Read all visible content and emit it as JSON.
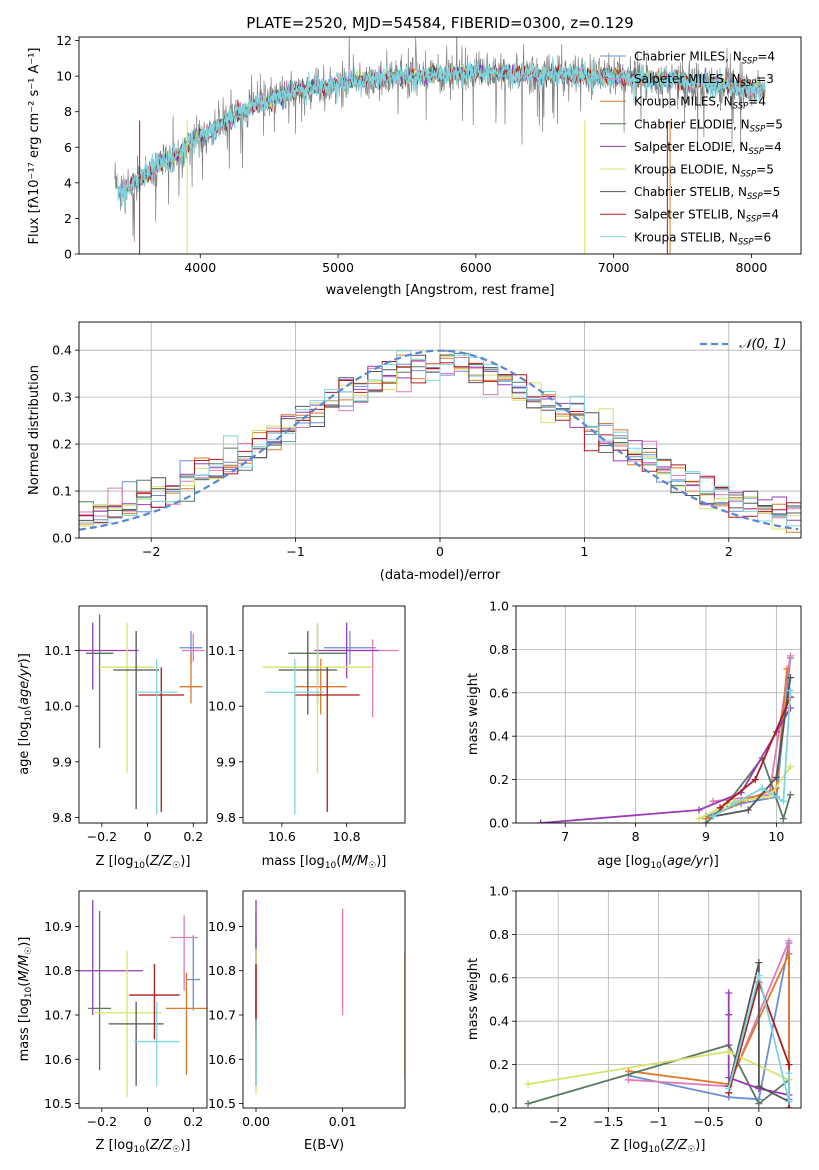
{
  "chart_data": [
    {
      "id": "spectrum",
      "type": "line",
      "title": "PLATE=2520, MJD=54584, FIBERID=0300, z=0.129",
      "xlabel": "wavelength [Angstrom, rest frame]",
      "ylabel": "Flux [fλ10⁻¹⁷ erg cm⁻² s⁻¹ A⁻¹]",
      "xlim": [
        3120,
        8360
      ],
      "ylim": [
        0,
        12.2
      ],
      "xticks": [
        4000,
        5000,
        6000,
        7000,
        8000
      ],
      "yticks": [
        0,
        2,
        4,
        6,
        8,
        10,
        12
      ],
      "grid": false,
      "legend_position": "right",
      "legend": [
        {
          "label": "Chabrier MILES, N",
          "sub": "SSP",
          "tail": "=4",
          "color": "#6d8fd8"
        },
        {
          "label": "Salpeter MILES, N",
          "sub": "SSP",
          "tail": "=3",
          "color": "#e17ab8"
        },
        {
          "label": "Kroupa MILES, N",
          "sub": "SSP",
          "tail": "=4",
          "color": "#e07a2a"
        },
        {
          "label": "Chabrier ELODIE, N",
          "sub": "SSP",
          "tail": "=5",
          "color": "#5a7a5f"
        },
        {
          "label": "Salpeter ELODIE, N",
          "sub": "SSP",
          "tail": "=4",
          "color": "#9a3cb5"
        },
        {
          "label": "Kroupa ELODIE, N",
          "sub": "SSP",
          "tail": "=5",
          "color": "#d6e36a"
        },
        {
          "label": "Chabrier STELIB, N",
          "sub": "SSP",
          "tail": "=5",
          "color": "#555555"
        },
        {
          "label": "Salpeter STELIB, N",
          "sub": "SSP",
          "tail": "=4",
          "color": "#b01a1a"
        },
        {
          "label": "Kroupa STELIB, N",
          "sub": "SSP",
          "tail": "=6",
          "color": "#7fd6e0"
        }
      ],
      "data_color": "#808080",
      "model_color": "#7fd6e0",
      "continuum_x": [
        3400,
        3500,
        3600,
        3700,
        3800,
        3900,
        4000,
        4100,
        4200,
        4300,
        4400,
        4500,
        4600,
        4700,
        4800,
        4900,
        5000,
        5200,
        5400,
        5600,
        5800,
        6000,
        6200,
        6400,
        6600,
        6800,
        7000,
        7200,
        7400,
        7600,
        7800,
        8000,
        8100
      ],
      "continuum_y": [
        3.6,
        3.8,
        4.4,
        5.0,
        5.4,
        6.0,
        6.6,
        7.0,
        7.6,
        8.0,
        8.4,
        8.6,
        8.9,
        9.2,
        9.3,
        9.4,
        9.6,
        9.8,
        9.9,
        10.0,
        10.1,
        10.2,
        10.2,
        10.1,
        10.1,
        10.0,
        10.0,
        9.9,
        9.8,
        9.6,
        9.5,
        9.3,
        9.2
      ]
    },
    {
      "id": "residuals",
      "type": "histogram",
      "xlabel": "(data-model)/error",
      "ylabel": "Normed distribution",
      "xlim": [
        -2.5,
        2.5
      ],
      "ylim": [
        0,
        0.46
      ],
      "xticks": [
        -2,
        -1,
        0,
        1,
        2
      ],
      "yticks": [
        0.0,
        0.1,
        0.2,
        0.3,
        0.4
      ],
      "grid": true,
      "legend": "𝒩(0, 1)",
      "legend_position": "top-right",
      "gaussian_color": "#5b86d4",
      "bin_width": 0.1
    },
    {
      "id": "age-vs-Z",
      "type": "errorbar",
      "xlabel": "Z [log₁₀(Z/Z☉)]",
      "ylabel": "age  [log₁₀(age/yr)]",
      "xlim": [
        -0.3,
        0.26
      ],
      "ylim": [
        9.79,
        10.18
      ],
      "xticks": [
        -0.2,
        0.0,
        0.2
      ],
      "yticks": [
        9.8,
        9.9,
        10.0,
        10.1
      ],
      "points": [
        {
          "x": 0.19,
          "y": 10.105,
          "xerr": 0.05,
          "yerr": [
            0.03,
            0.03
          ],
          "color": "#6d8fd8"
        },
        {
          "x": 0.2,
          "y": 10.1,
          "xerr": 0.05,
          "yerr": [
            0.02,
            0.03
          ],
          "color": "#e17ab8"
        },
        {
          "x": 0.19,
          "y": 10.035,
          "xerr": 0.05,
          "yerr": [
            0.03,
            0.06
          ],
          "color": "#e07a2a"
        },
        {
          "x": -0.21,
          "y": 10.095,
          "xerr": 0.06,
          "yerr": [
            0.17,
            0.07
          ],
          "color": "#5a7a5f"
        },
        {
          "x": -0.24,
          "y": 10.1,
          "xerr": 0.2,
          "yerr": [
            0.07,
            0.05
          ],
          "color": "#9a3cb5"
        },
        {
          "x": -0.09,
          "y": 10.07,
          "xerr": 0.12,
          "yerr": [
            0.19,
            0.08
          ],
          "color": "#d6e36a"
        },
        {
          "x": -0.05,
          "y": 10.065,
          "xerr": 0.1,
          "yerr": [
            0.25,
            0.07
          ],
          "color": "#555555"
        },
        {
          "x": 0.06,
          "y": 10.02,
          "xerr": 0.1,
          "yerr": [
            0.21,
            0.05
          ],
          "color": "#b01a1a"
        },
        {
          "x": 0.04,
          "y": 10.025,
          "xerr": 0.09,
          "yerr": [
            0.22,
            0.06
          ],
          "color": "#7fd6e0"
        }
      ]
    },
    {
      "id": "age-vs-mass",
      "type": "errorbar",
      "xlabel": "mass [log₁₀(M/M☉)]",
      "ylabel": "",
      "xlim": [
        10.48,
        10.98
      ],
      "ylim": [
        9.79,
        10.18
      ],
      "xticks": [
        10.6,
        10.8
      ],
      "yticks": [
        9.8,
        9.9,
        10.0,
        10.1
      ],
      "points": [
        {
          "x": 10.81,
          "y": 10.105,
          "xerr": 0.08,
          "yerr": [
            0.03,
            0.03
          ],
          "color": "#6d8fd8"
        },
        {
          "x": 10.88,
          "y": 10.1,
          "xerr": 0.08,
          "yerr": [
            0.12,
            0.02
          ],
          "color": "#e17ab8"
        },
        {
          "x": 10.72,
          "y": 10.035,
          "xerr": 0.08,
          "yerr": [
            0.05,
            0.05
          ],
          "color": "#e07a2a"
        },
        {
          "x": 10.71,
          "y": 10.095,
          "xerr": 0.09,
          "yerr": [
            0.09,
            0.05
          ],
          "color": "#5a7a5f"
        },
        {
          "x": 10.8,
          "y": 10.1,
          "xerr": 0.1,
          "yerr": [
            0.05,
            0.05
          ],
          "color": "#9a3cb5"
        },
        {
          "x": 10.71,
          "y": 10.07,
          "xerr": 0.17,
          "yerr": [
            0.19,
            0.08
          ],
          "color": "#d6e36a"
        },
        {
          "x": 10.68,
          "y": 10.065,
          "xerr": 0.09,
          "yerr": [
            0.08,
            0.07
          ],
          "color": "#555555"
        },
        {
          "x": 10.74,
          "y": 10.02,
          "xerr": 0.1,
          "yerr": [
            0.21,
            0.05
          ],
          "color": "#b01a1a"
        },
        {
          "x": 10.64,
          "y": 10.025,
          "xerr": 0.09,
          "yerr": [
            0.22,
            0.06
          ],
          "color": "#7fd6e0"
        }
      ]
    },
    {
      "id": "weight-vs-age",
      "type": "line",
      "xlabel": "age  [log₁₀(age/yr)]",
      "ylabel": "mass weight",
      "xlim": [
        6.3,
        10.35
      ],
      "ylim": [
        0,
        1.0
      ],
      "xticks": [
        7,
        8,
        9,
        10
      ],
      "yticks": [
        0.0,
        0.2,
        0.4,
        0.6,
        0.8,
        1.0
      ],
      "grid": true,
      "series": [
        {
          "color": "#6d8fd8",
          "x": [
            9.0,
            9.5,
            10.0,
            10.2
          ],
          "y": [
            0.03,
            0.09,
            0.12,
            0.76
          ]
        },
        {
          "color": "#e17ab8",
          "x": [
            9.1,
            9.9,
            10.2
          ],
          "y": [
            0.1,
            0.13,
            0.77
          ]
        },
        {
          "color": "#e07a2a",
          "x": [
            9.0,
            9.6,
            10.0,
            10.15
          ],
          "y": [
            0.02,
            0.11,
            0.16,
            0.71
          ]
        },
        {
          "color": "#5a7a5f",
          "x": [
            9.0,
            9.3,
            9.8,
            10.1,
            10.2
          ],
          "y": [
            0.0,
            0.09,
            0.3,
            0.02,
            0.13
          ]
        },
        {
          "color": "#9a3cb5",
          "x": [
            6.65,
            8.9,
            9.5,
            10.0,
            10.2
          ],
          "y": [
            0.0,
            0.06,
            0.14,
            0.42,
            0.53
          ]
        },
        {
          "color": "#d6e36a",
          "x": [
            8.9,
            9.4,
            9.9,
            10.2
          ],
          "y": [
            0.02,
            0.1,
            0.12,
            0.26
          ]
        },
        {
          "color": "#555555",
          "x": [
            9.1,
            9.6,
            10.0,
            10.2
          ],
          "y": [
            0.03,
            0.06,
            0.21,
            0.67
          ]
        },
        {
          "color": "#b01a1a",
          "x": [
            9.2,
            9.7,
            10.2
          ],
          "y": [
            0.07,
            0.2,
            0.58
          ]
        },
        {
          "color": "#7fd6e0",
          "x": [
            9.1,
            9.4,
            9.8,
            10.1,
            10.2
          ],
          "y": [
            0.03,
            0.09,
            0.16,
            0.1,
            0.61
          ]
        }
      ]
    },
    {
      "id": "mass-vs-Z",
      "type": "errorbar",
      "xlabel": "Z [log₁₀(Z/Z☉)]",
      "ylabel": "mass [log₁₀(M/M☉)]",
      "xlim": [
        -0.3,
        0.26
      ],
      "ylim": [
        10.49,
        10.98
      ],
      "xticks": [
        -0.2,
        0.0,
        0.2
      ],
      "yticks": [
        10.5,
        10.6,
        10.7,
        10.8,
        10.9
      ],
      "points": [
        {
          "x": 0.2,
          "y": 10.78,
          "xerr": 0.03,
          "yerr": [
            0.07,
            0.1
          ],
          "color": "#6d8fd8"
        },
        {
          "x": 0.16,
          "y": 10.875,
          "xerr": 0.06,
          "yerr": [
            0.12,
            0.05
          ],
          "color": "#e17ab8"
        },
        {
          "x": 0.17,
          "y": 10.715,
          "xerr": 0.09,
          "yerr": [
            0.15,
            0.08
          ],
          "color": "#e07a2a"
        },
        {
          "x": -0.21,
          "y": 10.715,
          "xerr": 0.05,
          "yerr": [
            0.14,
            0.22
          ],
          "color": "#5a7a5f"
        },
        {
          "x": -0.24,
          "y": 10.8,
          "xerr": 0.22,
          "yerr": [
            0.1,
            0.16
          ],
          "color": "#9a3cb5"
        },
        {
          "x": -0.09,
          "y": 10.705,
          "xerr": 0.15,
          "yerr": [
            0.19,
            0.14
          ],
          "color": "#d6e36a"
        },
        {
          "x": -0.05,
          "y": 10.68,
          "xerr": 0.12,
          "yerr": [
            0.14,
            0.05
          ],
          "color": "#555555"
        },
        {
          "x": 0.03,
          "y": 10.745,
          "xerr": 0.11,
          "yerr": [
            0.1,
            0.07
          ],
          "color": "#b01a1a"
        },
        {
          "x": 0.04,
          "y": 10.64,
          "xerr": 0.1,
          "yerr": [
            0.1,
            0.09
          ],
          "color": "#7fd6e0"
        }
      ]
    },
    {
      "id": "mass-vs-ebv",
      "type": "errorbar",
      "xlabel": "E(B-V)",
      "ylabel": "",
      "xlim": [
        -0.0015,
        0.0172
      ],
      "ylim": [
        10.49,
        10.98
      ],
      "xticks": [
        0.0,
        0.01
      ],
      "xticklabels": [
        "0.00",
        "0.01"
      ],
      "yticks": [
        10.5,
        10.6,
        10.7,
        10.8,
        10.9
      ],
      "points": [
        {
          "x": 0.0,
          "y": 10.78,
          "xerr": 0,
          "yerr": [
            0.08,
            0.1
          ],
          "color": "#6d8fd8"
        },
        {
          "x": 0.01,
          "y": 10.86,
          "xerr": 0,
          "yerr": [
            0.16,
            0.08
          ],
          "color": "#e17ab8"
        },
        {
          "x": 0.0172,
          "y": 10.7,
          "xerr": 0,
          "yerr": [
            0.14,
            0.14
          ],
          "color": "#e07a2a"
        },
        {
          "x": 0.0,
          "y": 10.715,
          "xerr": 0,
          "yerr": [
            0.14,
            0.22
          ],
          "color": "#5a7a5f"
        },
        {
          "x": 0.0,
          "y": 10.8,
          "xerr": 0,
          "yerr": [
            0.1,
            0.16
          ],
          "color": "#9a3cb5"
        },
        {
          "x": 0.0,
          "y": 10.6,
          "xerr": 0,
          "yerr": [
            0.08,
            0.25
          ],
          "color": "#d6e36a"
        },
        {
          "x": 0.0,
          "y": 10.68,
          "xerr": 0,
          "yerr": [
            0.14,
            0.05
          ],
          "color": "#555555"
        },
        {
          "x": 0.0,
          "y": 10.745,
          "xerr": 0,
          "yerr": [
            0.1,
            0.07
          ],
          "color": "#b01a1a"
        },
        {
          "x": 0.0,
          "y": 10.6,
          "xerr": 0,
          "yerr": [
            0.06,
            0.09
          ],
          "color": "#7fd6e0"
        }
      ]
    },
    {
      "id": "weight-vs-Z",
      "type": "line",
      "xlabel": "Z [log₁₀(Z/Z☉)]",
      "ylabel": "mass weight",
      "xlim": [
        -2.42,
        0.42
      ],
      "ylim": [
        0,
        1.0
      ],
      "xticks": [
        -2.0,
        -1.5,
        -1.0,
        -0.5,
        0.0
      ],
      "yticks": [
        0.0,
        0.2,
        0.4,
        0.6,
        0.8,
        1.0
      ],
      "grid": true,
      "series": [
        {
          "color": "#6d8fd8",
          "x": [
            -1.3,
            -0.3,
            0.0,
            0.3,
            0.3
          ],
          "y": [
            0.15,
            0.05,
            0.04,
            0.76,
            0.04
          ]
        },
        {
          "color": "#e17ab8",
          "x": [
            -1.3,
            -0.3,
            0.3,
            0.3
          ],
          "y": [
            0.13,
            0.1,
            0.77,
            0.0
          ]
        },
        {
          "color": "#e07a2a",
          "x": [
            -1.3,
            -0.3,
            0.3,
            0.3
          ],
          "y": [
            0.17,
            0.11,
            0.71,
            0.0
          ]
        },
        {
          "color": "#5a7a5f",
          "x": [
            -2.3,
            -0.3,
            0.0,
            0.3
          ],
          "y": [
            0.02,
            0.29,
            0.02,
            0.13
          ]
        },
        {
          "color": "#9a3cb5",
          "x": [
            -0.3,
            -0.3,
            -0.3,
            0.0,
            0.3
          ],
          "y": [
            0.53,
            0.43,
            0.14,
            0.09,
            0.06
          ]
        },
        {
          "color": "#d6e36a",
          "x": [
            -2.3,
            -0.3,
            0.3,
            0.3
          ],
          "y": [
            0.11,
            0.26,
            0.13,
            0.0
          ]
        },
        {
          "color": "#555555",
          "x": [
            -0.3,
            0.0,
            0.0,
            0.3
          ],
          "y": [
            0.1,
            0.67,
            0.1,
            0.03
          ]
        },
        {
          "color": "#b01a1a",
          "x": [
            -0.3,
            0.0,
            0.3,
            0.3
          ],
          "y": [
            0.07,
            0.58,
            0.2,
            0.0
          ]
        },
        {
          "color": "#7fd6e0",
          "x": [
            -0.3,
            0.0,
            0.3,
            0.3
          ],
          "y": [
            0.09,
            0.61,
            0.03,
            0.16
          ]
        }
      ]
    }
  ]
}
